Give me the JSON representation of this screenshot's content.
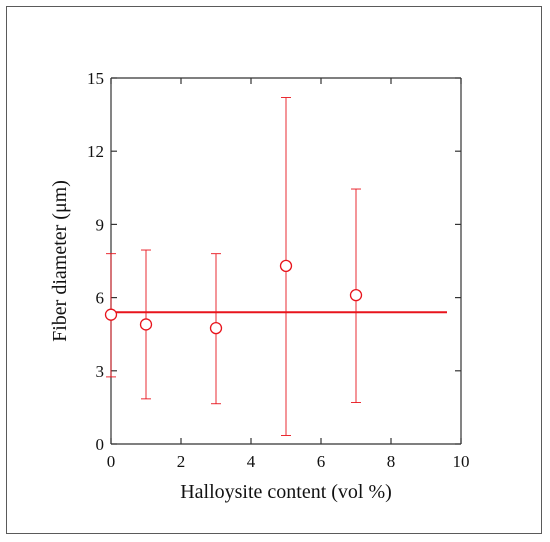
{
  "chart_data": {
    "type": "scatter",
    "xlabel": "Halloysite content (vol %)",
    "ylabel": "Fiber diameter (μm)",
    "xlim": [
      0,
      10
    ],
    "ylim": [
      0,
      15
    ],
    "xticks": [
      0,
      2,
      4,
      6,
      8,
      10
    ],
    "yticks": [
      0,
      3,
      6,
      9,
      12,
      15
    ],
    "grid": false,
    "color": "#e8141c",
    "series": [
      {
        "x": [
          0,
          1,
          3,
          5,
          7
        ],
        "y": [
          5.3,
          4.9,
          4.75,
          7.3,
          6.1
        ],
        "err_low": [
          2.75,
          1.85,
          1.65,
          0.35,
          1.7
        ],
        "err_high": [
          7.8,
          7.95,
          7.8,
          14.2,
          10.45
        ]
      }
    ],
    "reference_line": {
      "y": 5.4,
      "x_range": [
        0,
        9.6
      ]
    }
  }
}
